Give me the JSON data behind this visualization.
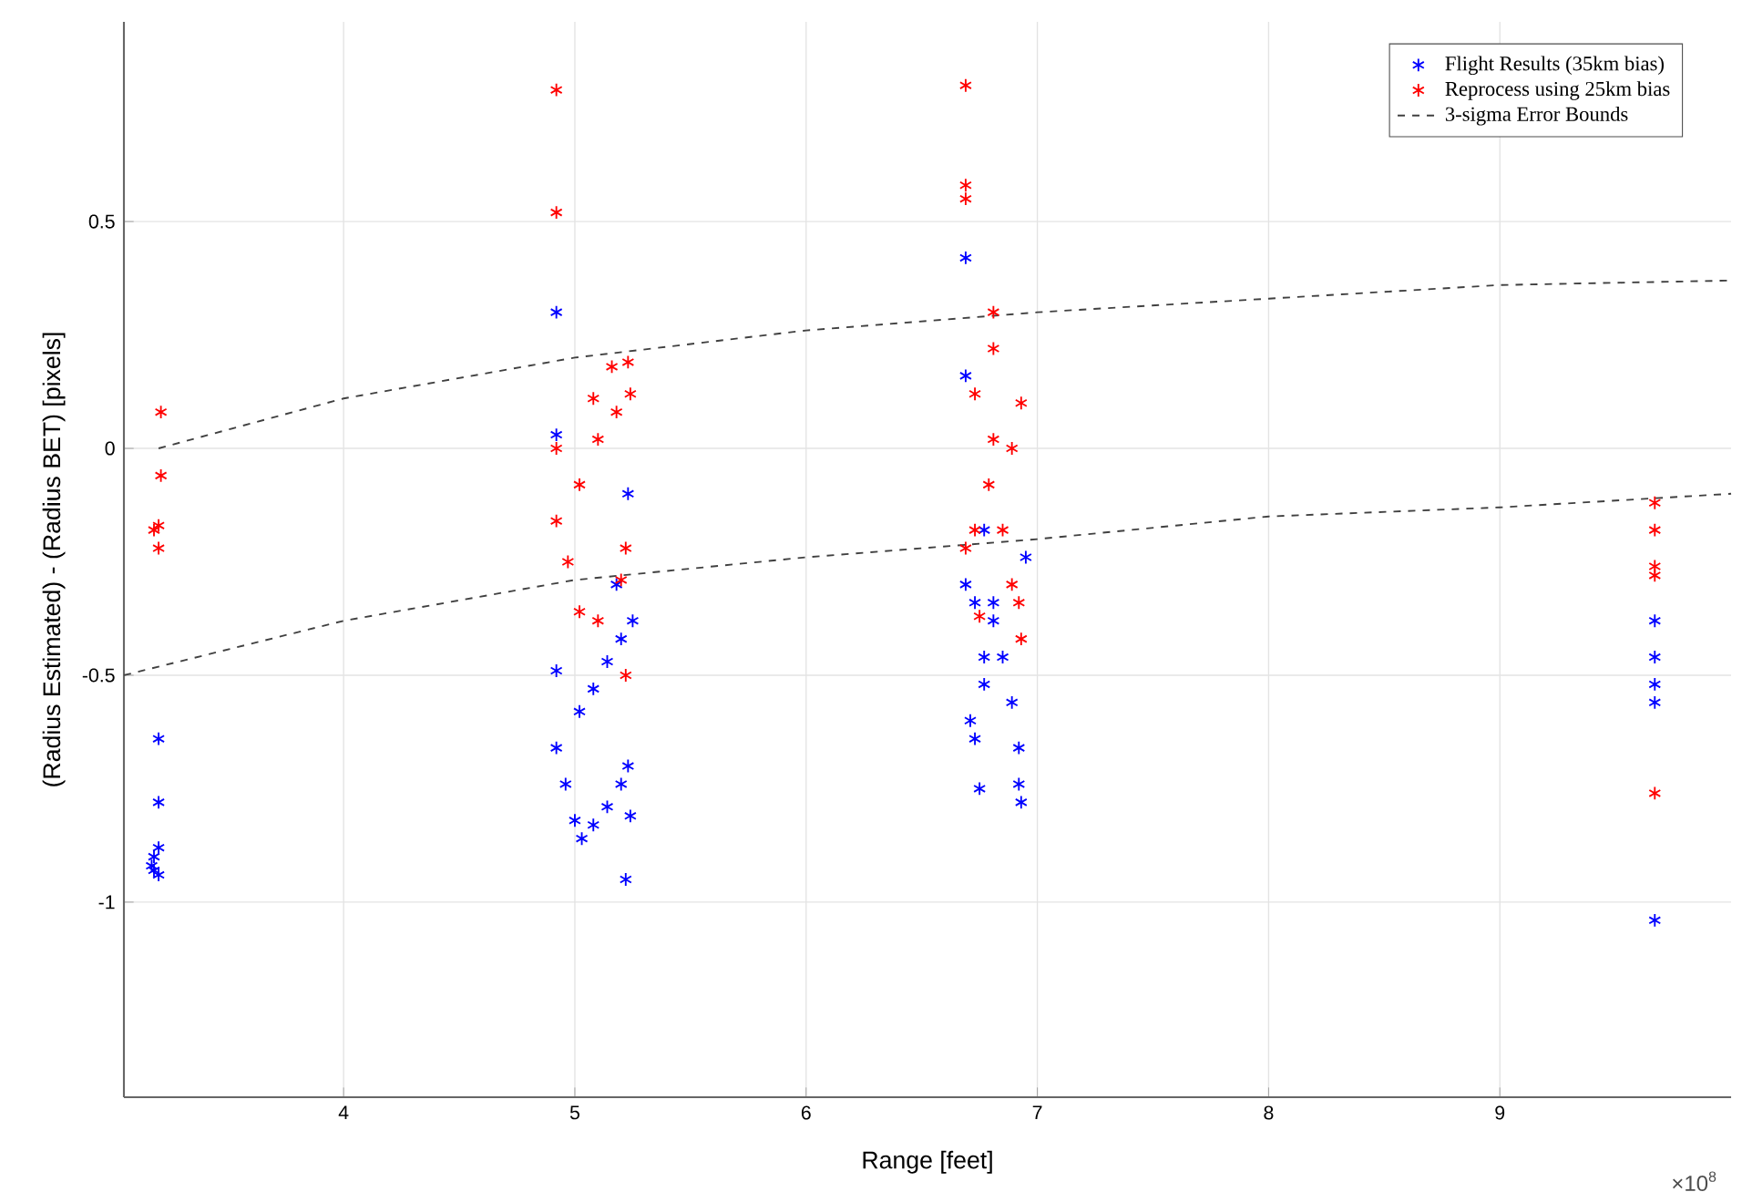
{
  "chart_data": {
    "type": "scatter",
    "xlabel": "Range [feet]",
    "ylabel": "(Radius Estimated) - (Radius BET) [pixels]",
    "annotations": [
      "×10$^{8}$"
    ],
    "xlim": [
      3.05,
      10
    ],
    "ylim": [
      -1.43,
      0.94
    ],
    "xticks": [
      4,
      5,
      6,
      7,
      8,
      9
    ],
    "yticks": [
      -1,
      -0.5,
      0,
      0.5
    ],
    "grid": true,
    "legend": "top right",
    "series": [
      {
        "name": "Flight Results (35km bias)",
        "marker": "cross",
        "color": "#0000ff",
        "x": [
          3.2,
          3.2,
          3.2,
          3.18,
          3.18,
          3.2,
          3.17,
          4.92,
          4.92,
          4.92,
          4.92,
          4.96,
          5.0,
          5.03,
          5.08,
          5.14,
          5.2,
          5.23,
          5.24,
          5.22,
          5.02,
          5.08,
          5.14,
          5.2,
          5.25,
          5.23,
          5.18,
          6.69,
          6.69,
          6.69,
          6.73,
          6.77,
          6.81,
          6.77,
          6.77,
          6.71,
          6.73,
          6.75,
          6.81,
          6.85,
          6.89,
          6.92,
          6.93,
          6.92,
          6.95,
          9.67,
          9.67,
          9.67,
          9.67,
          9.67
        ],
        "values": [
          -0.64,
          -0.78,
          -0.88,
          -0.9,
          -0.93,
          -0.94,
          -0.92,
          0.3,
          0.03,
          -0.49,
          -0.66,
          -0.74,
          -0.82,
          -0.86,
          -0.83,
          -0.79,
          -0.74,
          -0.7,
          -0.81,
          -0.95,
          -0.58,
          -0.53,
          -0.47,
          -0.42,
          -0.38,
          -0.1,
          -0.3,
          0.42,
          0.16,
          -0.3,
          -0.34,
          -0.18,
          -0.34,
          -0.46,
          -0.52,
          -0.6,
          -0.64,
          -0.75,
          -0.38,
          -0.46,
          -0.56,
          -0.66,
          -0.78,
          -0.74,
          -0.24,
          -0.38,
          -0.46,
          -0.52,
          -0.56,
          -1.04
        ]
      },
      {
        "name": "Reprocess using 25km bias",
        "marker": "cross",
        "color": "#ff0000",
        "x": [
          3.21,
          3.21,
          3.2,
          3.2,
          3.18,
          4.92,
          4.92,
          4.92,
          4.92,
          4.97,
          5.02,
          5.1,
          5.2,
          5.22,
          5.22,
          5.02,
          5.1,
          5.18,
          5.24,
          5.08,
          5.16,
          5.23,
          6.69,
          6.69,
          6.69,
          6.81,
          6.81,
          6.73,
          6.93,
          6.89,
          6.81,
          6.79,
          6.69,
          6.73,
          6.85,
          6.89,
          6.92,
          6.93,
          6.75,
          9.67,
          9.67,
          9.67,
          9.67,
          9.67
        ],
        "values": [
          0.08,
          -0.06,
          -0.17,
          -0.22,
          -0.18,
          0.79,
          0.52,
          0.0,
          -0.16,
          -0.25,
          -0.36,
          -0.38,
          -0.29,
          -0.22,
          -0.5,
          -0.08,
          0.02,
          0.08,
          0.12,
          0.11,
          0.18,
          0.19,
          0.8,
          0.58,
          0.55,
          0.3,
          0.22,
          0.12,
          0.1,
          0.0,
          0.02,
          -0.08,
          -0.22,
          -0.18,
          -0.18,
          -0.3,
          -0.34,
          -0.42,
          -0.37,
          -0.12,
          -0.18,
          -0.26,
          -0.28,
          -0.76
        ]
      },
      {
        "name": "3-sigma Error Bounds",
        "type": "line",
        "marker": "none",
        "line_style": "dashed",
        "color": "#404040",
        "x": [
          3.2,
          4,
          5,
          6,
          7,
          8,
          9,
          10
        ],
        "values": [
          0.0,
          0.11,
          0.2,
          0.26,
          0.3,
          0.33,
          0.36,
          0.37
        ]
      },
      {
        "type": "line",
        "marker": "none",
        "line_style": "dashed",
        "color": "#404040",
        "x": [
          3.05,
          4,
          5,
          6,
          7,
          8,
          9,
          10
        ],
        "values": [
          -0.5,
          -0.38,
          -0.29,
          -0.24,
          -0.2,
          -0.15,
          -0.13,
          -0.1
        ]
      }
    ]
  }
}
